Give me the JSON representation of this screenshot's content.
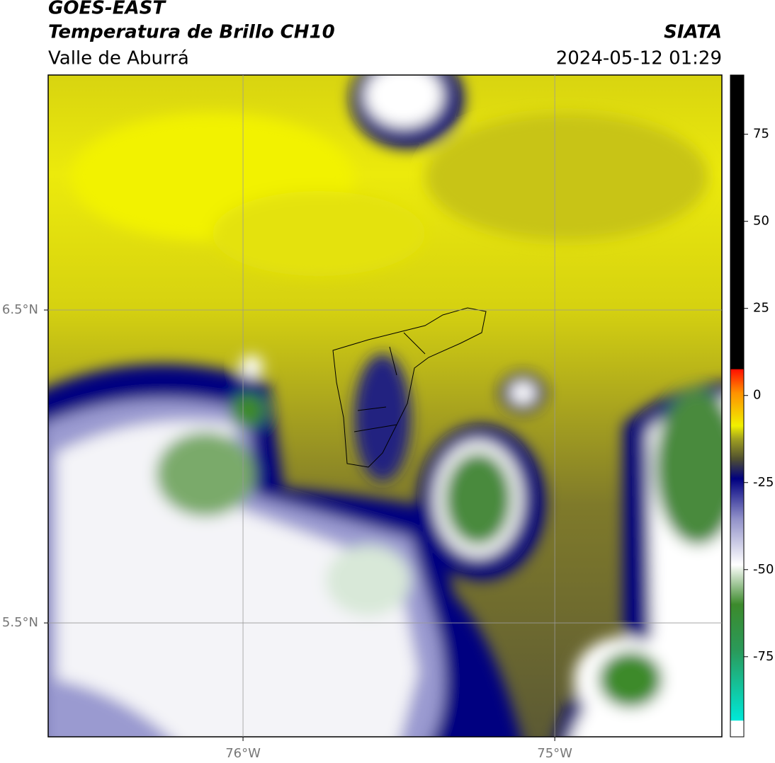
{
  "header": {
    "title": "GOES-EAST",
    "subtitle": "Temperatura de Brillo CH10",
    "region": "Valle de Aburrá",
    "source": "SIATA",
    "timestamp": "2024-05-12 01:29"
  },
  "map": {
    "xlim": [
      -76.625,
      -74.464
    ],
    "ylim": [
      5.136,
      7.251
    ],
    "xticks": [
      {
        "value": -76,
        "label": "76°W"
      },
      {
        "value": -75,
        "label": "75°W"
      }
    ],
    "yticks": [
      {
        "value": 6.5,
        "label": "6.5°N"
      },
      {
        "value": 5.5,
        "label": "5.5°N"
      }
    ],
    "grid": true
  },
  "colorbar": {
    "lim": [
      -98,
      92
    ],
    "ticks": [
      75,
      50,
      25,
      0,
      -25,
      -50,
      -75
    ]
  }
}
